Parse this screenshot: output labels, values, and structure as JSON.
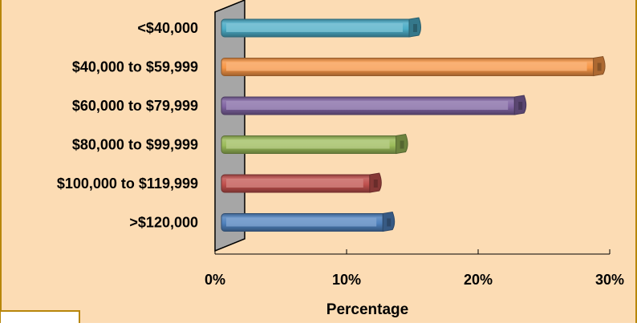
{
  "chart_data": {
    "type": "bar",
    "orientation": "horizontal",
    "categories": [
      "<$40,000",
      "$40,000 to $59,999",
      "$60,000 to $79,999",
      "$80,000 to $99,999",
      "$100,000 to $119,999",
      ">$120,000"
    ],
    "values": [
      15,
      29,
      23,
      14,
      12,
      13
    ],
    "value_unit": "%",
    "xlabel": "Percentage",
    "ylabel": "",
    "title": "",
    "xlim": [
      0,
      30
    ],
    "xticks": [
      "0%",
      "10%",
      "20%",
      "30%"
    ],
    "grid": false,
    "legend": "none",
    "style": "3d-cylinder"
  },
  "colors": {
    "background": "#fcdcb4",
    "frame_border": "#b8860b",
    "wall": "#a6a6a6",
    "bars": [
      "#4bacc6",
      "#f79646",
      "#8064a2",
      "#9bbb59",
      "#c0504d",
      "#4f81bd"
    ]
  }
}
